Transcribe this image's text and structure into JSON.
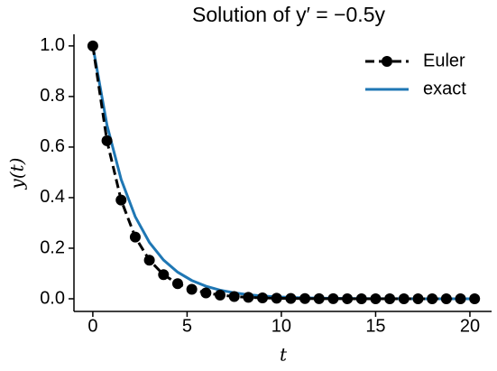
{
  "chart_data": {
    "type": "line",
    "title": "Solution of y′ = −0.5y",
    "xlabel": "t",
    "ylabel": "y(t)",
    "xlim": [
      -1.0,
      21.15
    ],
    "ylim": [
      -0.05,
      1.046
    ],
    "xticks": [
      0,
      5,
      10,
      15,
      20
    ],
    "yticks": [
      {
        "value": 0,
        "label": "0.0"
      },
      {
        "value": 0.2,
        "label": "0.2"
      },
      {
        "value": 0.4,
        "label": "0.4"
      },
      {
        "value": 0.6,
        "label": "0.6"
      },
      {
        "value": 0.8,
        "label": "0.8"
      },
      {
        "value": 1,
        "label": "1.0"
      }
    ],
    "legend": "upper right",
    "x": [
      0,
      0.75,
      1.5,
      2.25,
      3,
      3.75,
      4.5,
      5.25,
      6,
      6.75,
      7.5,
      8.25,
      9,
      9.75,
      10.5,
      11.25,
      12,
      12.75,
      13.5,
      14.25,
      15,
      15.75,
      16.5,
      17.25,
      18,
      18.75,
      19.5,
      20.25
    ],
    "series": [
      {
        "name": "Euler",
        "color": "#000000",
        "dashed": true,
        "markers": true,
        "values": [
          1,
          0.625,
          0.3906,
          0.2441,
          0.1526,
          0.0954,
          0.0596,
          0.0373,
          0.0233,
          0.0146,
          0.0091,
          0.0057,
          0.0036,
          0.0022,
          0.0014,
          0.0009,
          0.0005,
          0.0003,
          0.0002,
          0.0001,
          0.0001,
          0.0001,
          0.0,
          0.0,
          0.0,
          0.0,
          0.0,
          0.0
        ]
      },
      {
        "name": "exact",
        "color": "#1f77b4",
        "dashed": false,
        "markers": false,
        "values": [
          1,
          0.6873,
          0.4724,
          0.3247,
          0.2231,
          0.1534,
          0.1054,
          0.0724,
          0.0498,
          0.0342,
          0.0235,
          0.0162,
          0.0111,
          0.0076,
          0.0052,
          0.0036,
          0.0025,
          0.0017,
          0.0012,
          0.0008,
          0.0006,
          0.0004,
          0.0003,
          0.0002,
          0.0001,
          0.0001,
          0.0001,
          0.0
        ]
      }
    ]
  }
}
